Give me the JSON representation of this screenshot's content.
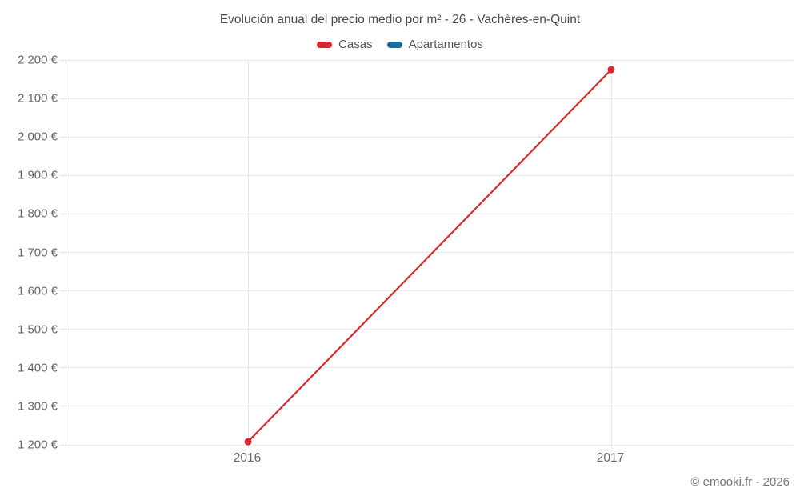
{
  "header": {
    "title": "Evolución anual del precio medio por m² - 26 - Vachères-en-Quint"
  },
  "legend": {
    "items": [
      {
        "label": "Casas",
        "color": "#d7282f"
      },
      {
        "label": "Apartamentos",
        "color": "#1a6d9e"
      }
    ]
  },
  "footer": {
    "credit": "© emooki.fr - 2026"
  },
  "chart_data": {
    "type": "line",
    "title": "Evolución anual del precio medio por m² - 26 - Vachères-en-Quint",
    "categories": [
      "2016",
      "2017"
    ],
    "series": [
      {
        "name": "Casas",
        "color": "#d7282f",
        "values": [
          1208,
          2175
        ]
      },
      {
        "name": "Apartamentos",
        "color": "#1a6d9e",
        "values": []
      }
    ],
    "xlabel": "",
    "ylabel": "",
    "ylim": [
      1200,
      2200
    ],
    "y_ticks": [
      {
        "value": 1200,
        "label": "1 200 €"
      },
      {
        "value": 1300,
        "label": "1 300 €"
      },
      {
        "value": 1400,
        "label": "1 400 €"
      },
      {
        "value": 1500,
        "label": "1 500 €"
      },
      {
        "value": 1600,
        "label": "1 600 €"
      },
      {
        "value": 1700,
        "label": "1 700 €"
      },
      {
        "value": 1800,
        "label": "1 800 €"
      },
      {
        "value": 1900,
        "label": "1 900 €"
      },
      {
        "value": 2000,
        "label": "2 000 €"
      },
      {
        "value": 2100,
        "label": "2 100 €"
      },
      {
        "value": 2200,
        "label": "2 200 €"
      }
    ],
    "grid": true,
    "legend_position": "top",
    "marker": "circle",
    "currency_suffix": "€"
  }
}
